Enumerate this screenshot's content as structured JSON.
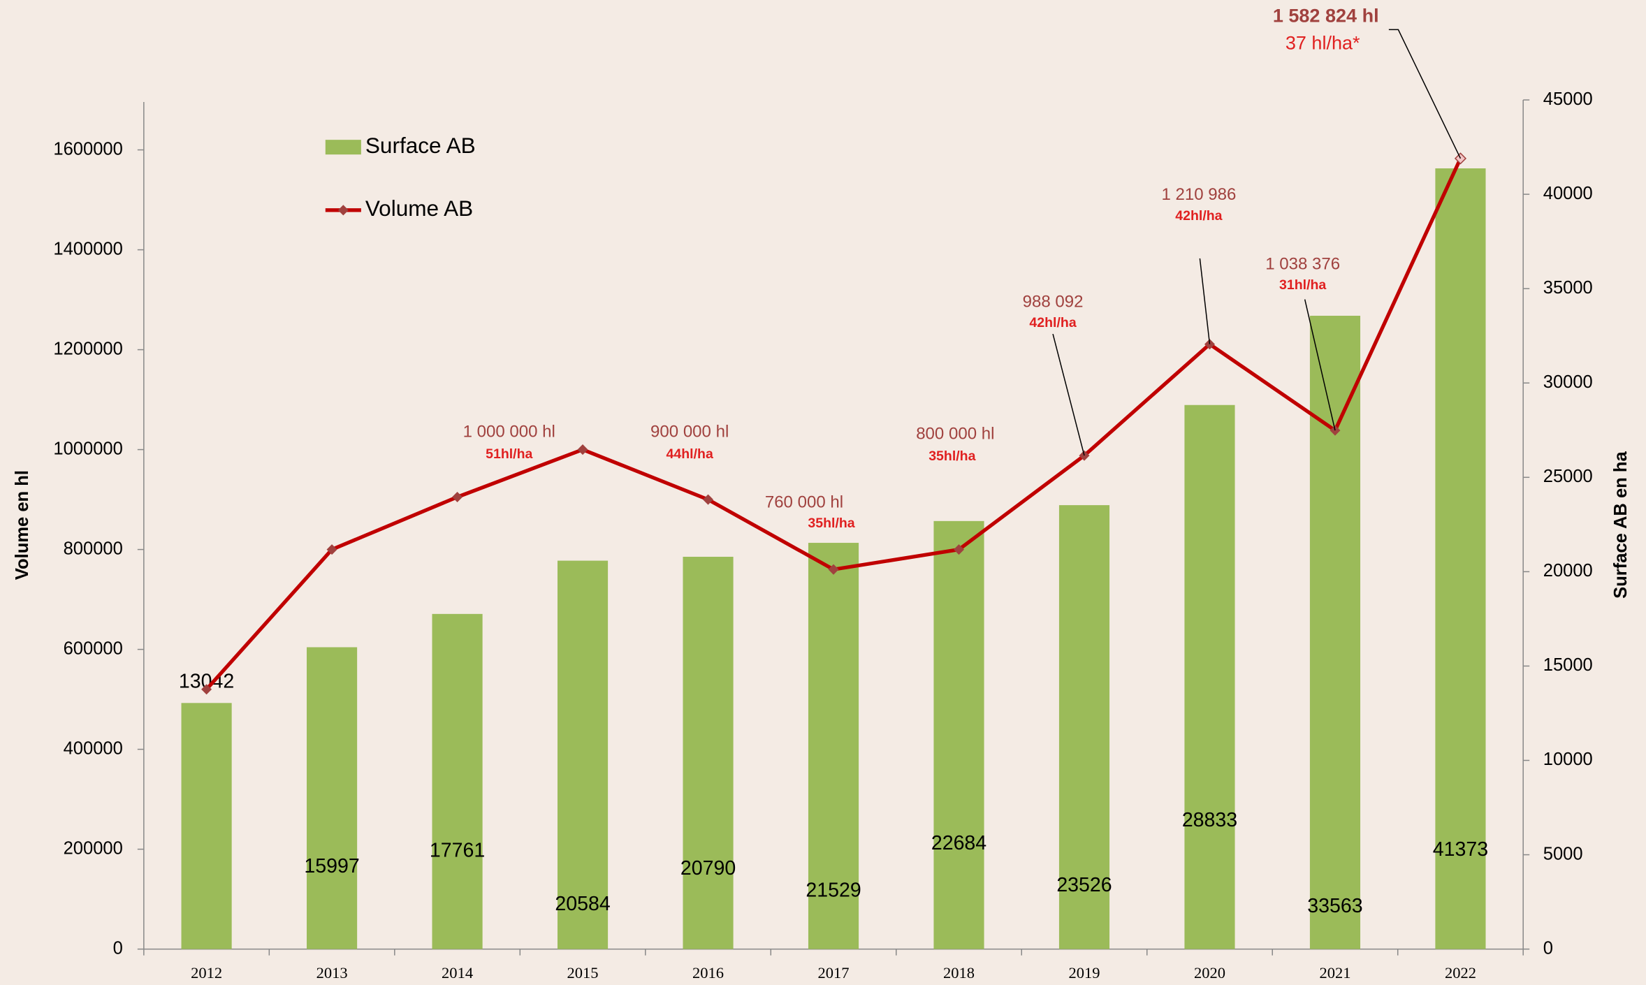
{
  "chart_data": {
    "type": "bar_line",
    "x_categories": [
      "2012",
      "2013",
      "2014",
      "2015",
      "2016",
      "2017",
      "2018",
      "2019",
      "2020",
      "2021",
      "2022"
    ],
    "y_label": "Volume en hl",
    "y2_label": "Surface AB en ha",
    "ylim": [
      0,
      1700000
    ],
    "yticks": [
      0,
      200000,
      400000,
      600000,
      800000,
      1000000,
      1200000,
      1400000,
      1600000
    ],
    "y2lim": [
      0,
      45000
    ],
    "y2ticks": [
      0,
      5000,
      10000,
      15000,
      20000,
      25000,
      30000,
      35000,
      40000,
      45000
    ],
    "legend": "top-left",
    "series": [
      {
        "name": "Surface AB",
        "type": "bar",
        "axis": "y2",
        "color": "#9bbb59",
        "values": [
          13042,
          15997,
          17761,
          20584,
          20790,
          21529,
          22684,
          23526,
          28833,
          33563,
          41373
        ]
      },
      {
        "name": "Volume AB",
        "type": "line",
        "color": "#c00000",
        "marker_color": "#a0413e",
        "values": [
          520000,
          800000,
          905000,
          1000000,
          900000,
          760000,
          800000,
          988092,
          1210986,
          1038376,
          1582824
        ]
      }
    ],
    "annotations": [
      {
        "index": 3,
        "text": "1 000 000 hl",
        "sub": "51hl/ha"
      },
      {
        "index": 4,
        "text": "900 000 hl",
        "sub": "44hl/ha"
      },
      {
        "index": 5,
        "text": "760 000 hl",
        "sub": "35hl/ha"
      },
      {
        "index": 6,
        "text": "800 000 hl",
        "sub": "35hl/ha"
      },
      {
        "index": 7,
        "text": "988 092",
        "sub": "42hl/ha"
      },
      {
        "index": 8,
        "text": "1 210 986",
        "sub": "42hl/ha"
      },
      {
        "index": 9,
        "text": "1 038 376",
        "sub": "31hl/ha"
      },
      {
        "index": 10,
        "text": "1 582 824 hl",
        "sub": "37 hl/ha*"
      }
    ]
  }
}
